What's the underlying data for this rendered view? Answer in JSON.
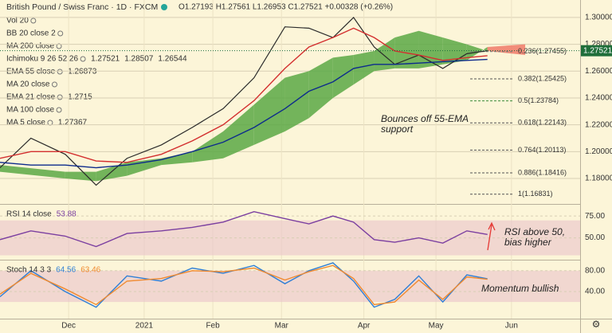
{
  "header": {
    "title": "British Pound / Swiss Franc · 1D · FXCM",
    "ohlc": "O1.27193 H1.27561 L1.26953 C1.27521 +0.00328 (+0.26%)"
  },
  "legend": [
    {
      "name": "Vol 20",
      "hidden": true
    },
    {
      "name": "BB 20 close 2",
      "hidden": true
    },
    {
      "name": "MA 200 close",
      "hidden": true
    },
    {
      "name": "Ichimoku 9 26 52 26",
      "values": [
        1.27521,
        1.28507,
        1.26544
      ],
      "colors": [
        "#2e7d32",
        "#2e7d32",
        "#c62828"
      ]
    },
    {
      "name": "EMA 55 close",
      "values": [
        1.26873
      ],
      "colors": [
        "#0d2b8c"
      ]
    },
    {
      "name": "MA 20 close",
      "hidden": true
    },
    {
      "name": "EMA 21 close",
      "values": [
        1.2715
      ],
      "colors": [
        "#c62828"
      ]
    },
    {
      "name": "MA 100 close",
      "hidden": true
    },
    {
      "name": "MA 5 close",
      "values": [
        1.27367
      ],
      "colors": [
        "#0d2b8c"
      ]
    }
  ],
  "chart_data": [
    {
      "type": "line",
      "xlim": [
        0,
        169
      ],
      "ylim": [
        1.161,
        1.313
      ],
      "xticks": [
        {
          "value": 20,
          "label": "Dec"
        },
        {
          "value": 42,
          "label": "2021"
        },
        {
          "value": 62,
          "label": "Feb"
        },
        {
          "value": 82,
          "label": "Mar"
        },
        {
          "value": 106,
          "label": "Apr"
        },
        {
          "value": 127,
          "label": "May"
        },
        {
          "value": 149,
          "label": "Jun"
        }
      ],
      "yticks": [
        {
          "value": 1.18,
          "label": "1.18000"
        },
        {
          "value": 1.2,
          "label": "1.20000"
        },
        {
          "value": 1.22,
          "label": "1.22000"
        },
        {
          "value": 1.24,
          "label": "1.24000"
        },
        {
          "value": 1.26,
          "label": "1.26000"
        },
        {
          "value": 1.28,
          "label": "1.28000"
        },
        {
          "value": 1.3,
          "label": "1.30000"
        }
      ],
      "x": [
        0,
        9,
        19,
        28,
        37,
        47,
        56,
        65,
        74,
        83,
        90,
        97,
        103,
        109,
        115,
        122,
        129,
        136,
        142
      ],
      "series": [
        {
          "color": "#2a2a2a",
          "values": [
            1.188,
            1.21,
            1.198,
            1.175,
            1.195,
            1.205,
            1.218,
            1.232,
            1.255,
            1.293,
            1.292,
            1.285,
            1.3,
            1.278,
            1.265,
            1.272,
            1.262,
            1.273,
            1.27521
          ]
        },
        {
          "color": "#d32f2f",
          "values": [
            1.195,
            1.2,
            1.2,
            1.193,
            1.192,
            1.198,
            1.208,
            1.22,
            1.238,
            1.262,
            1.278,
            1.285,
            1.292,
            1.285,
            1.275,
            1.272,
            1.268,
            1.27,
            1.2715
          ]
        },
        {
          "color": "#0d2b8c",
          "values": [
            1.192,
            1.19,
            1.19,
            1.188,
            1.19,
            1.194,
            1.2,
            1.207,
            1.218,
            1.232,
            1.245,
            1.252,
            1.262,
            1.265,
            1.265,
            1.266,
            1.267,
            1.268,
            1.26873
          ]
        }
      ],
      "cloud": {
        "x": [
          0,
          19,
          28,
          37,
          47,
          56,
          65,
          74,
          83,
          90,
          97,
          103,
          109,
          115,
          122,
          129,
          136,
          142,
          153
        ],
        "span_a": [
          1.19,
          1.185,
          1.185,
          1.192,
          1.195,
          1.2,
          1.215,
          1.235,
          1.255,
          1.26,
          1.27,
          1.272,
          1.275,
          1.285,
          1.29,
          1.285,
          1.28,
          1.275,
          1.272
        ],
        "span_b": [
          1.185,
          1.18,
          1.178,
          1.182,
          1.19,
          1.192,
          1.195,
          1.205,
          1.215,
          1.225,
          1.24,
          1.25,
          1.26,
          1.262,
          1.262,
          1.265,
          1.268,
          1.278,
          1.28
        ],
        "colors": [
          "#5aa845",
          "#f07a6a"
        ]
      },
      "levels": [
        {
          "label": "0.236(1.27455)",
          "value": 1.27455,
          "color": "#787878"
        },
        {
          "label": "0.382(1.25425)",
          "value": 1.25425,
          "color": "#555"
        },
        {
          "label": "0.5(1.23784)",
          "value": 1.23784,
          "color": "#3a8a3a"
        },
        {
          "label": "0.618(1.22143)",
          "value": 1.22143,
          "color": "#555"
        },
        {
          "label": "0.764(1.20113)",
          "value": 1.20113,
          "color": "#555"
        },
        {
          "label": "0.886(1.18416)",
          "value": 1.18416,
          "color": "#555"
        },
        {
          "label": "1(1.16831)",
          "value": 1.16831,
          "color": "#555"
        }
      ],
      "last_price": 1.27521,
      "annotation": "Bounces off 55-EMA support"
    },
    {
      "type": "line",
      "name": "RSI 14 close",
      "xlim": [
        0,
        169
      ],
      "ylim": [
        25,
        87
      ],
      "yticks": [
        {
          "value": 50,
          "label": "50.00"
        },
        {
          "value": 75,
          "label": "75.00"
        }
      ],
      "band": [
        30,
        70
      ],
      "x": [
        0,
        9,
        19,
        28,
        37,
        47,
        56,
        65,
        74,
        83,
        90,
        97,
        103,
        109,
        115,
        122,
        129,
        136,
        142
      ],
      "series": [
        {
          "color": "#7b3fa0",
          "values": [
            48,
            58,
            52,
            40,
            55,
            58,
            62,
            68,
            80,
            72,
            66,
            75,
            68,
            48,
            45,
            50,
            44,
            58,
            53.88
          ]
        }
      ],
      "annotation": "RSI above 50, bias higher"
    },
    {
      "type": "line",
      "name": "Stoch 14 3 3",
      "xlim": [
        0,
        169
      ],
      "ylim": [
        -12,
        98
      ],
      "yticks": [
        {
          "value": 40,
          "label": "40.00"
        },
        {
          "value": 80,
          "label": "80.00"
        }
      ],
      "band": [
        20,
        80
      ],
      "x": [
        0,
        9,
        19,
        28,
        37,
        47,
        56,
        65,
        74,
        83,
        90,
        97,
        103,
        109,
        115,
        122,
        129,
        136,
        142
      ],
      "series": [
        {
          "color": "#2f7fd6",
          "values": [
            30,
            80,
            40,
            10,
            70,
            60,
            85,
            75,
            90,
            55,
            80,
            95,
            60,
            10,
            25,
            70,
            20,
            72,
            64.56
          ]
        },
        {
          "color": "#f08a30",
          "values": [
            35,
            75,
            45,
            15,
            60,
            65,
            80,
            78,
            85,
            62,
            78,
            90,
            65,
            15,
            20,
            62,
            25,
            68,
            63.46
          ]
        }
      ],
      "annotation": "Momentum bullish"
    }
  ]
}
